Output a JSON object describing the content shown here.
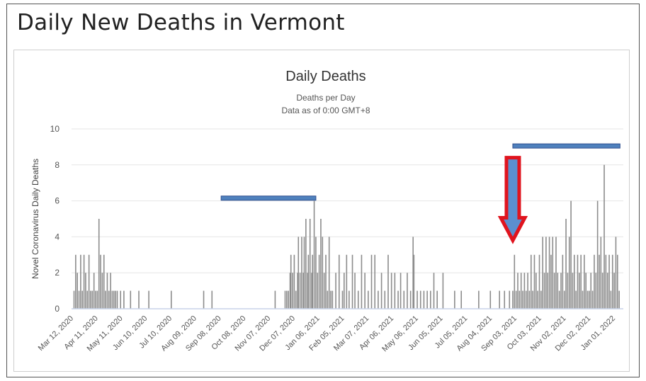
{
  "page_title": "Daily New Deaths in Vermont",
  "colors": {
    "bar": "#8c8c8c",
    "grid": "#e6e6e6",
    "axis": "#c8d4ea",
    "highlight_fill": "#4f81bd",
    "highlight_stroke": "#2f4f8f",
    "arrow_stroke": "#e0141e",
    "arrow_fill": "#5b8fd0"
  },
  "chart_data": {
    "type": "bar",
    "title": "Daily Deaths",
    "subtitle": "Deaths per Day",
    "subtitle2": "Data as of 0:00 GMT+8",
    "ylabel": "Novel Coronavirus Daily Deaths",
    "xlabel": "",
    "ylim": [
      0,
      10
    ],
    "yticks": [
      0,
      2,
      4,
      6,
      8,
      10
    ],
    "grid": true,
    "legend": "none",
    "xlim": [
      "2020-03-12",
      "2022-01-05"
    ],
    "xtick_labels": [
      "Mar 12, 2020",
      "Apr 11, 2020",
      "May 11, 2020",
      "Jun 10, 2020",
      "Jul 10, 2020",
      "Aug 09, 2020",
      "Sep 08, 2020",
      "Oct 08, 2020",
      "Nov 07, 2020",
      "Dec 07, 2020",
      "Jan 06, 2021",
      "Feb 05, 2021",
      "Mar 07, 2021",
      "Apr 06, 2021",
      "May 06, 2021",
      "Jun 05, 2021",
      "Jul 05, 2021",
      "Aug 04, 2021",
      "Sep 03, 2021",
      "Oct 03, 2021",
      "Nov 02, 2021",
      "Dec 02, 2021",
      "Jan 01, 2022"
    ],
    "bars": [
      [
        "2020-03-15",
        1
      ],
      [
        "2020-03-17",
        3
      ],
      [
        "2020-03-19",
        2
      ],
      [
        "2020-03-21",
        1
      ],
      [
        "2020-03-23",
        3
      ],
      [
        "2020-03-25",
        1
      ],
      [
        "2020-03-27",
        3
      ],
      [
        "2020-03-29",
        2
      ],
      [
        "2020-03-31",
        1
      ],
      [
        "2020-04-02",
        3
      ],
      [
        "2020-04-04",
        1
      ],
      [
        "2020-04-06",
        1
      ],
      [
        "2020-04-08",
        2
      ],
      [
        "2020-04-10",
        1
      ],
      [
        "2020-04-12",
        1
      ],
      [
        "2020-04-14",
        5
      ],
      [
        "2020-04-16",
        3
      ],
      [
        "2020-04-18",
        2
      ],
      [
        "2020-04-20",
        3
      ],
      [
        "2020-04-22",
        1
      ],
      [
        "2020-04-24",
        2
      ],
      [
        "2020-04-26",
        1
      ],
      [
        "2020-04-28",
        2
      ],
      [
        "2020-04-30",
        1
      ],
      [
        "2020-05-02",
        1
      ],
      [
        "2020-05-04",
        1
      ],
      [
        "2020-05-06",
        1
      ],
      [
        "2020-05-10",
        1
      ],
      [
        "2020-05-14",
        1
      ],
      [
        "2020-05-22",
        1
      ],
      [
        "2020-06-01",
        1
      ],
      [
        "2020-06-13",
        1
      ],
      [
        "2020-07-10",
        1
      ],
      [
        "2020-08-18",
        1
      ],
      [
        "2020-08-28",
        1
      ],
      [
        "2020-11-12",
        1
      ],
      [
        "2020-11-24",
        1
      ],
      [
        "2020-11-26",
        1
      ],
      [
        "2020-11-28",
        1
      ],
      [
        "2020-11-30",
        2
      ],
      [
        "2020-12-01",
        3
      ],
      [
        "2020-12-03",
        2
      ],
      [
        "2020-12-05",
        3
      ],
      [
        "2020-12-07",
        1
      ],
      [
        "2020-12-09",
        2
      ],
      [
        "2020-12-10",
        4
      ],
      [
        "2020-12-12",
        2
      ],
      [
        "2020-12-14",
        4
      ],
      [
        "2020-12-16",
        2
      ],
      [
        "2020-12-17",
        4
      ],
      [
        "2020-12-19",
        5
      ],
      [
        "2020-12-21",
        2
      ],
      [
        "2020-12-22",
        3
      ],
      [
        "2020-12-24",
        5
      ],
      [
        "2020-12-26",
        2
      ],
      [
        "2020-12-27",
        3
      ],
      [
        "2020-12-29",
        6
      ],
      [
        "2020-12-31",
        4
      ],
      [
        "2021-01-02",
        2
      ],
      [
        "2021-01-04",
        3
      ],
      [
        "2021-01-06",
        5
      ],
      [
        "2021-01-08",
        4
      ],
      [
        "2021-01-10",
        2
      ],
      [
        "2021-01-12",
        3
      ],
      [
        "2021-01-14",
        1
      ],
      [
        "2021-01-16",
        4
      ],
      [
        "2021-01-18",
        1
      ],
      [
        "2021-01-20",
        1
      ],
      [
        "2021-01-24",
        2
      ],
      [
        "2021-01-28",
        3
      ],
      [
        "2021-02-01",
        1
      ],
      [
        "2021-02-03",
        2
      ],
      [
        "2021-02-06",
        3
      ],
      [
        "2021-02-09",
        1
      ],
      [
        "2021-02-13",
        3
      ],
      [
        "2021-02-16",
        2
      ],
      [
        "2021-02-20",
        1
      ],
      [
        "2021-02-24",
        3
      ],
      [
        "2021-02-28",
        2
      ],
      [
        "2021-03-04",
        1
      ],
      [
        "2021-03-08",
        3
      ],
      [
        "2021-03-12",
        3
      ],
      [
        "2021-03-16",
        1
      ],
      [
        "2021-03-20",
        2
      ],
      [
        "2021-03-24",
        1
      ],
      [
        "2021-03-28",
        3
      ],
      [
        "2021-04-01",
        2
      ],
      [
        "2021-04-05",
        2
      ],
      [
        "2021-04-09",
        1
      ],
      [
        "2021-04-12",
        2
      ],
      [
        "2021-04-16",
        1
      ],
      [
        "2021-04-20",
        2
      ],
      [
        "2021-04-24",
        1
      ],
      [
        "2021-04-27",
        4
      ],
      [
        "2021-04-28",
        3
      ],
      [
        "2021-05-02",
        1
      ],
      [
        "2021-05-06",
        1
      ],
      [
        "2021-05-10",
        1
      ],
      [
        "2021-05-14",
        1
      ],
      [
        "2021-05-18",
        1
      ],
      [
        "2021-05-22",
        2
      ],
      [
        "2021-05-26",
        1
      ],
      [
        "2021-06-02",
        2
      ],
      [
        "2021-06-16",
        1
      ],
      [
        "2021-06-24",
        1
      ],
      [
        "2021-07-15",
        1
      ],
      [
        "2021-07-29",
        1
      ],
      [
        "2021-08-09",
        1
      ],
      [
        "2021-08-15",
        1
      ],
      [
        "2021-08-21",
        1
      ],
      [
        "2021-08-25",
        1
      ],
      [
        "2021-08-27",
        3
      ],
      [
        "2021-08-29",
        1
      ],
      [
        "2021-08-31",
        2
      ],
      [
        "2021-09-02",
        1
      ],
      [
        "2021-09-04",
        2
      ],
      [
        "2021-09-06",
        1
      ],
      [
        "2021-09-08",
        2
      ],
      [
        "2021-09-10",
        1
      ],
      [
        "2021-09-12",
        2
      ],
      [
        "2021-09-14",
        1
      ],
      [
        "2021-09-16",
        3
      ],
      [
        "2021-09-18",
        1
      ],
      [
        "2021-09-20",
        3
      ],
      [
        "2021-09-22",
        2
      ],
      [
        "2021-09-24",
        1
      ],
      [
        "2021-09-26",
        3
      ],
      [
        "2021-09-28",
        1
      ],
      [
        "2021-09-30",
        4
      ],
      [
        "2021-10-02",
        2
      ],
      [
        "2021-10-04",
        4
      ],
      [
        "2021-10-06",
        2
      ],
      [
        "2021-10-08",
        4
      ],
      [
        "2021-10-10",
        3
      ],
      [
        "2021-10-12",
        4
      ],
      [
        "2021-10-14",
        2
      ],
      [
        "2021-10-16",
        4
      ],
      [
        "2021-10-18",
        2
      ],
      [
        "2021-10-20",
        1
      ],
      [
        "2021-10-22",
        2
      ],
      [
        "2021-10-24",
        3
      ],
      [
        "2021-10-26",
        1
      ],
      [
        "2021-10-28",
        5
      ],
      [
        "2021-10-30",
        2
      ],
      [
        "2021-11-01",
        4
      ],
      [
        "2021-11-03",
        6
      ],
      [
        "2021-11-05",
        2
      ],
      [
        "2021-11-07",
        3
      ],
      [
        "2021-11-09",
        1
      ],
      [
        "2021-11-11",
        3
      ],
      [
        "2021-11-13",
        2
      ],
      [
        "2021-11-15",
        3
      ],
      [
        "2021-11-17",
        1
      ],
      [
        "2021-11-19",
        3
      ],
      [
        "2021-11-21",
        2
      ],
      [
        "2021-11-23",
        1
      ],
      [
        "2021-11-25",
        1
      ],
      [
        "2021-11-27",
        2
      ],
      [
        "2021-11-29",
        1
      ],
      [
        "2021-12-01",
        3
      ],
      [
        "2021-12-03",
        2
      ],
      [
        "2021-12-05",
        6
      ],
      [
        "2021-12-07",
        3
      ],
      [
        "2021-12-09",
        4
      ],
      [
        "2021-12-11",
        2
      ],
      [
        "2021-12-13",
        8
      ],
      [
        "2021-12-15",
        3
      ],
      [
        "2021-12-17",
        2
      ],
      [
        "2021-12-19",
        3
      ],
      [
        "2021-12-21",
        1
      ],
      [
        "2021-12-23",
        3
      ],
      [
        "2021-12-25",
        2
      ],
      [
        "2021-12-27",
        4
      ],
      [
        "2021-12-29",
        3
      ],
      [
        "2021-12-31",
        1
      ]
    ],
    "annotations": [
      {
        "type": "bar-marker",
        "from": "2020-09-08",
        "to": "2020-12-31",
        "y": 6.15
      },
      {
        "type": "bar-marker",
        "from": "2021-08-25",
        "to": "2022-01-01",
        "y": 9.05
      },
      {
        "type": "down-arrow",
        "x": "2021-08-25",
        "from_y": 8.4,
        "to_y": 3.8
      }
    ]
  }
}
